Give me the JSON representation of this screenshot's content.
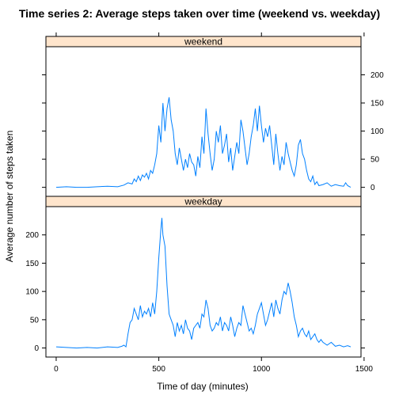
{
  "chart_data": {
    "type": "line",
    "title": "Time series 2: Average steps taken over time (weekend vs. weekday)",
    "xlabel": "Time of day (minutes)",
    "ylabel": "Average number of steps taken",
    "xlim": [
      -50,
      1485
    ],
    "ylim": [
      -16,
      250
    ],
    "x_ticks": [
      0,
      500,
      1000,
      1500
    ],
    "y_ticks": [
      0,
      50,
      100,
      150,
      200
    ],
    "line_color": "#0080ff",
    "strip_color": "#ffe5cc",
    "panels": [
      {
        "name": "weekend",
        "y_axis_side": "right",
        "points": [
          [
            0,
            0
          ],
          [
            50,
            1
          ],
          [
            100,
            0
          ],
          [
            150,
            0
          ],
          [
            200,
            1
          ],
          [
            250,
            2
          ],
          [
            300,
            1
          ],
          [
            330,
            4
          ],
          [
            350,
            8
          ],
          [
            370,
            6
          ],
          [
            380,
            15
          ],
          [
            390,
            10
          ],
          [
            400,
            20
          ],
          [
            410,
            12
          ],
          [
            420,
            22
          ],
          [
            430,
            18
          ],
          [
            440,
            25
          ],
          [
            450,
            15
          ],
          [
            460,
            30
          ],
          [
            470,
            25
          ],
          [
            480,
            40
          ],
          [
            490,
            60
          ],
          [
            500,
            110
          ],
          [
            510,
            80
          ],
          [
            520,
            150
          ],
          [
            530,
            100
          ],
          [
            540,
            140
          ],
          [
            550,
            160
          ],
          [
            560,
            120
          ],
          [
            570,
            100
          ],
          [
            580,
            60
          ],
          [
            590,
            40
          ],
          [
            600,
            70
          ],
          [
            610,
            50
          ],
          [
            620,
            30
          ],
          [
            630,
            50
          ],
          [
            640,
            35
          ],
          [
            650,
            60
          ],
          [
            660,
            45
          ],
          [
            670,
            40
          ],
          [
            680,
            20
          ],
          [
            690,
            55
          ],
          [
            700,
            35
          ],
          [
            710,
            90
          ],
          [
            720,
            60
          ],
          [
            730,
            140
          ],
          [
            740,
            95
          ],
          [
            750,
            60
          ],
          [
            760,
            30
          ],
          [
            770,
            50
          ],
          [
            780,
            100
          ],
          [
            790,
            80
          ],
          [
            800,
            110
          ],
          [
            810,
            60
          ],
          [
            820,
            75
          ],
          [
            830,
            95
          ],
          [
            840,
            45
          ],
          [
            850,
            70
          ],
          [
            860,
            30
          ],
          [
            870,
            55
          ],
          [
            880,
            80
          ],
          [
            890,
            60
          ],
          [
            900,
            120
          ],
          [
            910,
            100
          ],
          [
            920,
            70
          ],
          [
            930,
            40
          ],
          [
            940,
            60
          ],
          [
            950,
            90
          ],
          [
            960,
            110
          ],
          [
            970,
            140
          ],
          [
            980,
            100
          ],
          [
            990,
            145
          ],
          [
            1000,
            110
          ],
          [
            1010,
            80
          ],
          [
            1020,
            105
          ],
          [
            1030,
            90
          ],
          [
            1040,
            110
          ],
          [
            1050,
            75
          ],
          [
            1060,
            40
          ],
          [
            1070,
            95
          ],
          [
            1080,
            60
          ],
          [
            1090,
            30
          ],
          [
            1100,
            55
          ],
          [
            1110,
            40
          ],
          [
            1120,
            80
          ],
          [
            1130,
            60
          ],
          [
            1140,
            45
          ],
          [
            1150,
            30
          ],
          [
            1160,
            20
          ],
          [
            1170,
            40
          ],
          [
            1180,
            75
          ],
          [
            1190,
            85
          ],
          [
            1200,
            60
          ],
          [
            1210,
            50
          ],
          [
            1220,
            30
          ],
          [
            1230,
            15
          ],
          [
            1240,
            10
          ],
          [
            1250,
            20
          ],
          [
            1260,
            5
          ],
          [
            1270,
            10
          ],
          [
            1280,
            3
          ],
          [
            1300,
            5
          ],
          [
            1320,
            8
          ],
          [
            1340,
            2
          ],
          [
            1360,
            5
          ],
          [
            1380,
            3
          ],
          [
            1400,
            2
          ],
          [
            1410,
            8
          ],
          [
            1420,
            3
          ],
          [
            1435,
            0
          ]
        ]
      },
      {
        "name": "weekday",
        "y_axis_side": "left",
        "points": [
          [
            0,
            2
          ],
          [
            50,
            1
          ],
          [
            100,
            0
          ],
          [
            150,
            1
          ],
          [
            200,
            0
          ],
          [
            250,
            2
          ],
          [
            300,
            1
          ],
          [
            320,
            3
          ],
          [
            330,
            5
          ],
          [
            340,
            2
          ],
          [
            350,
            25
          ],
          [
            360,
            45
          ],
          [
            370,
            50
          ],
          [
            380,
            70
          ],
          [
            390,
            60
          ],
          [
            400,
            50
          ],
          [
            410,
            75
          ],
          [
            420,
            55
          ],
          [
            430,
            65
          ],
          [
            440,
            60
          ],
          [
            450,
            70
          ],
          [
            460,
            55
          ],
          [
            470,
            80
          ],
          [
            480,
            60
          ],
          [
            490,
            100
          ],
          [
            500,
            160
          ],
          [
            510,
            210
          ],
          [
            515,
            230
          ],
          [
            520,
            200
          ],
          [
            530,
            180
          ],
          [
            540,
            110
          ],
          [
            550,
            60
          ],
          [
            560,
            50
          ],
          [
            570,
            40
          ],
          [
            580,
            20
          ],
          [
            590,
            45
          ],
          [
            600,
            30
          ],
          [
            610,
            40
          ],
          [
            620,
            25
          ],
          [
            630,
            50
          ],
          [
            640,
            35
          ],
          [
            650,
            30
          ],
          [
            660,
            15
          ],
          [
            670,
            35
          ],
          [
            680,
            40
          ],
          [
            690,
            45
          ],
          [
            700,
            35
          ],
          [
            710,
            60
          ],
          [
            720,
            55
          ],
          [
            730,
            85
          ],
          [
            740,
            70
          ],
          [
            750,
            40
          ],
          [
            760,
            30
          ],
          [
            770,
            35
          ],
          [
            780,
            45
          ],
          [
            790,
            40
          ],
          [
            800,
            55
          ],
          [
            810,
            30
          ],
          [
            820,
            45
          ],
          [
            830,
            40
          ],
          [
            840,
            30
          ],
          [
            850,
            55
          ],
          [
            860,
            40
          ],
          [
            870,
            20
          ],
          [
            880,
            35
          ],
          [
            890,
            45
          ],
          [
            900,
            40
          ],
          [
            910,
            75
          ],
          [
            920,
            60
          ],
          [
            930,
            45
          ],
          [
            940,
            30
          ],
          [
            950,
            35
          ],
          [
            960,
            25
          ],
          [
            970,
            40
          ],
          [
            980,
            60
          ],
          [
            990,
            70
          ],
          [
            1000,
            80
          ],
          [
            1010,
            60
          ],
          [
            1020,
            40
          ],
          [
            1030,
            50
          ],
          [
            1040,
            65
          ],
          [
            1050,
            80
          ],
          [
            1060,
            55
          ],
          [
            1070,
            85
          ],
          [
            1080,
            70
          ],
          [
            1090,
            60
          ],
          [
            1100,
            85
          ],
          [
            1110,
            100
          ],
          [
            1120,
            95
          ],
          [
            1130,
            115
          ],
          [
            1140,
            100
          ],
          [
            1150,
            80
          ],
          [
            1160,
            55
          ],
          [
            1170,
            40
          ],
          [
            1180,
            20
          ],
          [
            1190,
            30
          ],
          [
            1200,
            35
          ],
          [
            1210,
            25
          ],
          [
            1220,
            20
          ],
          [
            1230,
            30
          ],
          [
            1240,
            15
          ],
          [
            1250,
            20
          ],
          [
            1260,
            25
          ],
          [
            1270,
            15
          ],
          [
            1280,
            10
          ],
          [
            1290,
            15
          ],
          [
            1300,
            10
          ],
          [
            1320,
            5
          ],
          [
            1340,
            10
          ],
          [
            1360,
            3
          ],
          [
            1380,
            5
          ],
          [
            1400,
            2
          ],
          [
            1420,
            4
          ],
          [
            1435,
            2
          ]
        ]
      }
    ]
  }
}
